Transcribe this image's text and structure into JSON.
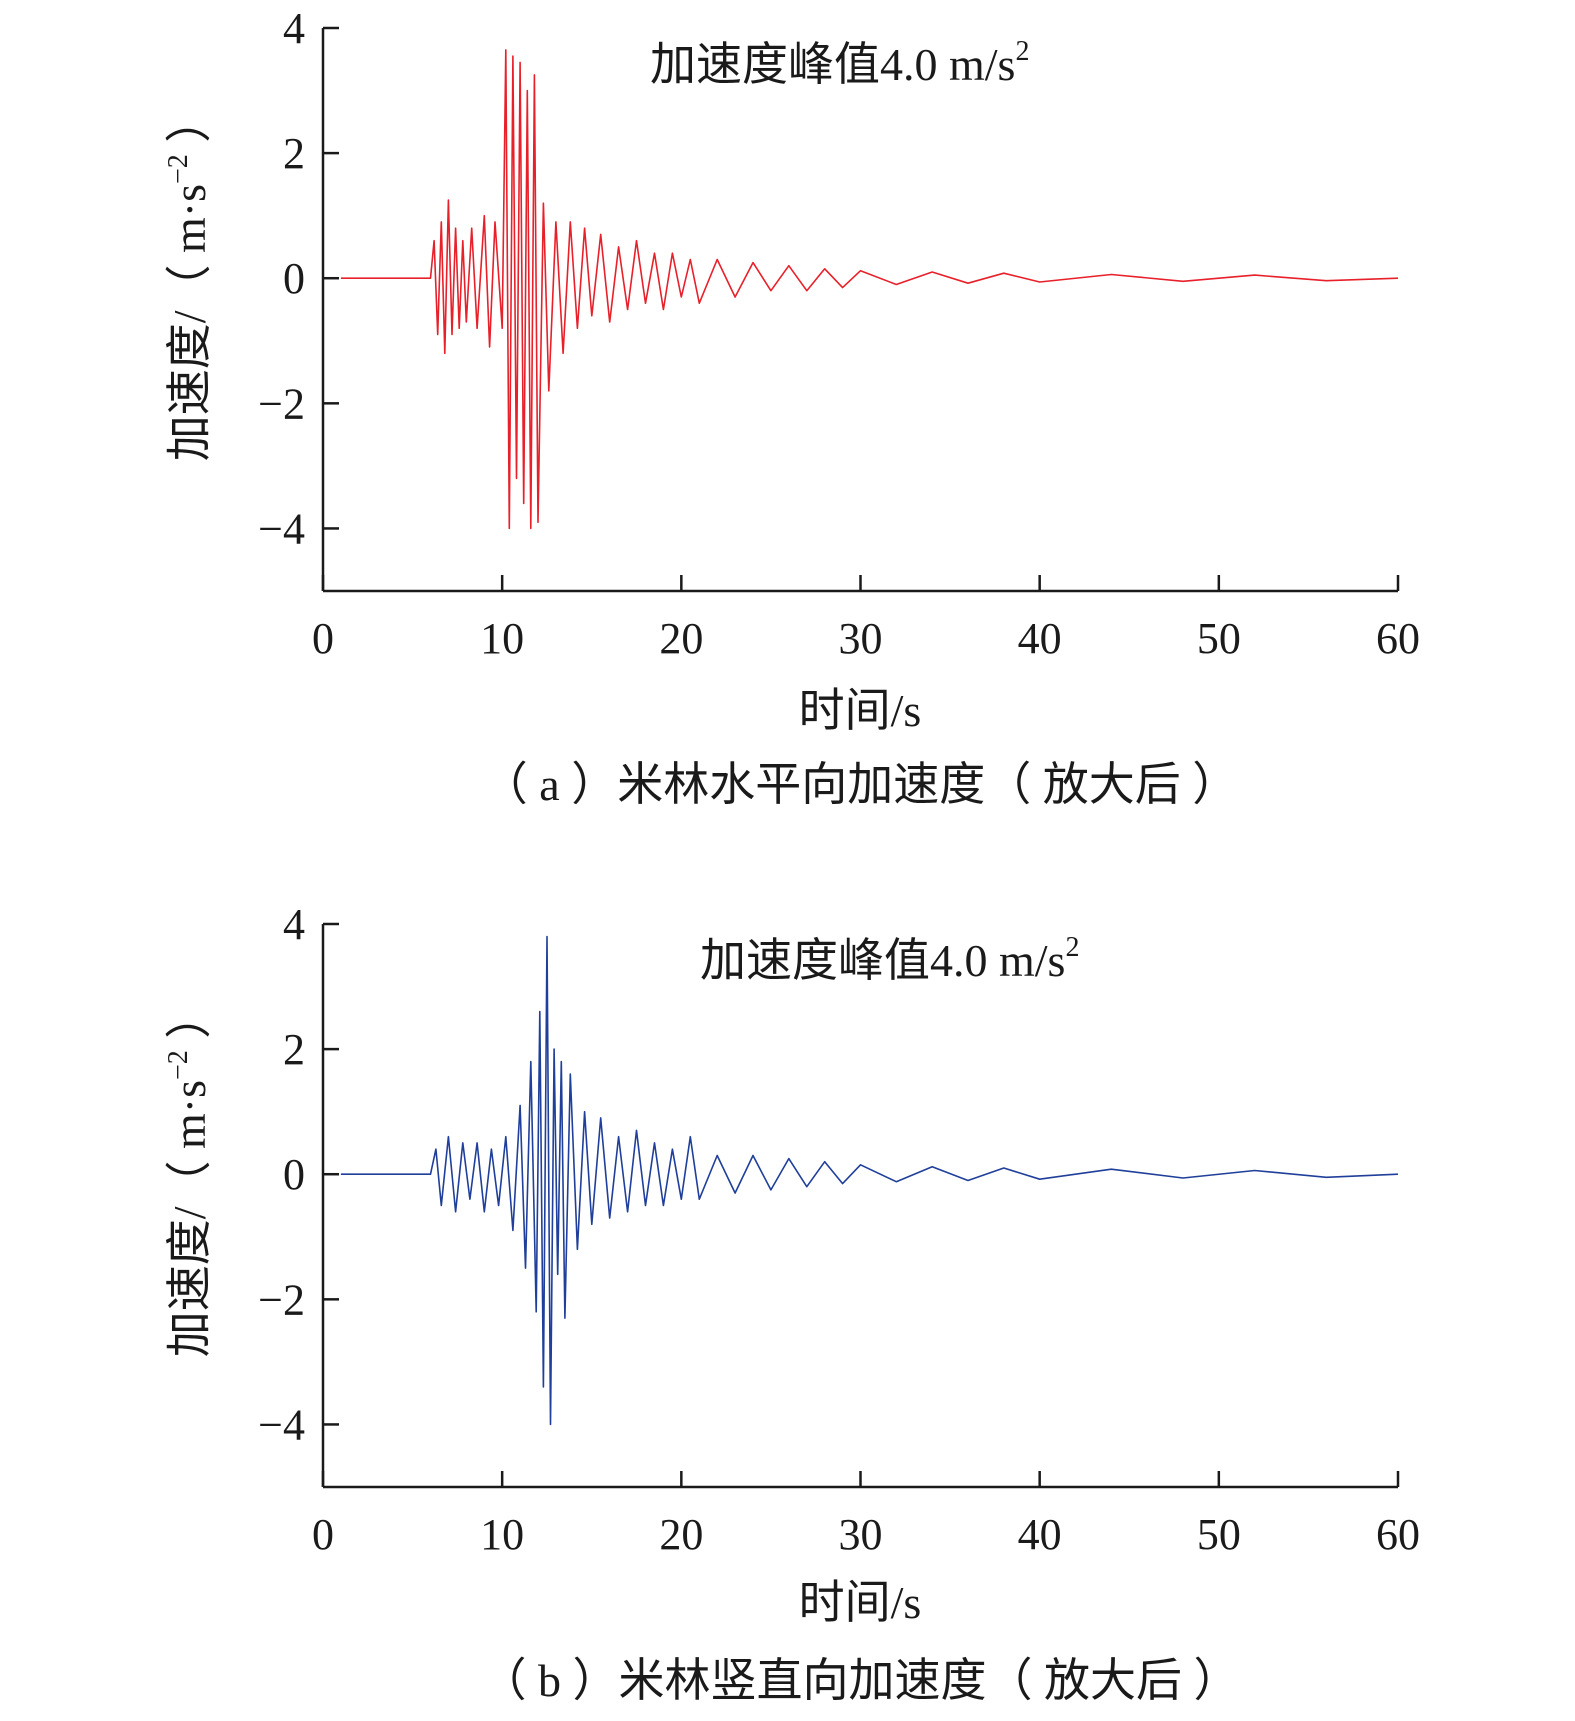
{
  "chart_data": [
    {
      "type": "line",
      "caption": "（ a ）米林水平向加速度（ 放大后 ）",
      "annotation": "加速度峰值4.0 m/s",
      "annotation_sup": "2",
      "xlabel": "时间/s",
      "ylabel": "加速度/（ m·s",
      "ylabel_sup": "−2",
      "ylabel_close": " ）",
      "xlim": [
        0,
        60
      ],
      "ylim": [
        -5,
        4
      ],
      "xticks": [
        0,
        10,
        20,
        30,
        40,
        50,
        60
      ],
      "xtick_labels": [
        "0",
        "10",
        "20",
        "30",
        "40",
        "50",
        "60"
      ],
      "yticks": [
        4,
        2,
        0,
        -2,
        -4
      ],
      "ytick_labels": [
        "4",
        "2",
        "0",
        "−2",
        "−4"
      ],
      "grid": false,
      "series": [
        {
          "color": "#e8202a",
          "x": [
            1,
            6,
            6.2,
            6.4,
            6.6,
            6.8,
            7.0,
            7.2,
            7.4,
            7.6,
            7.8,
            8.0,
            8.3,
            8.6,
            9.0,
            9.3,
            9.6,
            10.0,
            10.2,
            10.4,
            10.6,
            10.8,
            11.0,
            11.2,
            11.4,
            11.6,
            11.8,
            12.0,
            12.3,
            12.6,
            13.0,
            13.4,
            13.8,
            14.2,
            14.6,
            15.0,
            15.5,
            16.0,
            16.5,
            17.0,
            17.5,
            18.0,
            18.5,
            19.0,
            19.5,
            20.0,
            20.5,
            21.0,
            22.0,
            23.0,
            24.0,
            25.0,
            26.0,
            27.0,
            28.0,
            29.0,
            30.0,
            32.0,
            34.0,
            36.0,
            38.0,
            40.0,
            44.0,
            48.0,
            52.0,
            56.0,
            60.0
          ],
          "y": [
            0,
            0,
            0.6,
            -0.9,
            0.9,
            -1.2,
            1.25,
            -0.9,
            0.8,
            -0.8,
            0.6,
            -0.7,
            0.8,
            -0.8,
            1.0,
            -1.1,
            0.9,
            -0.8,
            3.65,
            -4.0,
            3.55,
            -3.2,
            3.45,
            -3.6,
            3.0,
            -4.0,
            3.25,
            -3.9,
            1.2,
            -1.8,
            0.9,
            -1.2,
            0.9,
            -0.8,
            0.8,
            -0.6,
            0.7,
            -0.7,
            0.5,
            -0.5,
            0.6,
            -0.4,
            0.4,
            -0.5,
            0.4,
            -0.3,
            0.3,
            -0.4,
            0.3,
            -0.3,
            0.25,
            -0.2,
            0.2,
            -0.2,
            0.15,
            -0.15,
            0.12,
            -0.1,
            0.1,
            -0.08,
            0.08,
            -0.06,
            0.06,
            -0.05,
            0.05,
            -0.04,
            0
          ]
        }
      ]
    },
    {
      "type": "line",
      "caption": "（ b ）米林竖直向加速度（ 放大后 ）",
      "annotation": "加速度峰值4.0 m/s",
      "annotation_sup": "2",
      "xlabel": "时间/s",
      "ylabel": "加速度/（ m·s",
      "ylabel_sup": "−2",
      "ylabel_close": " ）",
      "xlim": [
        0,
        60
      ],
      "ylim": [
        -5,
        4
      ],
      "xticks": [
        0,
        10,
        20,
        30,
        40,
        50,
        60
      ],
      "xtick_labels": [
        "0",
        "10",
        "20",
        "30",
        "40",
        "50",
        "60"
      ],
      "yticks": [
        4,
        2,
        0,
        -2,
        -4
      ],
      "ytick_labels": [
        "4",
        "2",
        "0",
        "−2",
        "−4"
      ],
      "grid": false,
      "series": [
        {
          "color": "#1f3f9a",
          "x": [
            1,
            6,
            6.3,
            6.6,
            7.0,
            7.4,
            7.8,
            8.2,
            8.6,
            9.0,
            9.4,
            9.8,
            10.2,
            10.6,
            11.0,
            11.3,
            11.6,
            11.9,
            12.1,
            12.3,
            12.5,
            12.7,
            12.9,
            13.1,
            13.3,
            13.5,
            13.8,
            14.2,
            14.6,
            15.0,
            15.5,
            16.0,
            16.5,
            17.0,
            17.5,
            18.0,
            18.5,
            19.0,
            19.5,
            20.0,
            20.5,
            21.0,
            22.0,
            23.0,
            24.0,
            25.0,
            26.0,
            27.0,
            28.0,
            29.0,
            30.0,
            32.0,
            34.0,
            36.0,
            38.0,
            40.0,
            44.0,
            48.0,
            52.0,
            56.0,
            60.0
          ],
          "y": [
            0,
            0,
            0.4,
            -0.5,
            0.6,
            -0.6,
            0.5,
            -0.4,
            0.5,
            -0.6,
            0.4,
            -0.5,
            0.6,
            -0.9,
            1.1,
            -1.5,
            1.8,
            -2.2,
            2.6,
            -3.4,
            3.8,
            -4.0,
            2.0,
            -1.6,
            1.8,
            -2.3,
            1.6,
            -1.2,
            1.0,
            -0.8,
            0.9,
            -0.7,
            0.6,
            -0.6,
            0.7,
            -0.5,
            0.5,
            -0.5,
            0.4,
            -0.4,
            0.6,
            -0.4,
            0.3,
            -0.3,
            0.3,
            -0.25,
            0.25,
            -0.2,
            0.2,
            -0.15,
            0.15,
            -0.12,
            0.12,
            -0.1,
            0.1,
            -0.08,
            0.08,
            -0.06,
            0.06,
            -0.05,
            0
          ]
        }
      ]
    }
  ]
}
